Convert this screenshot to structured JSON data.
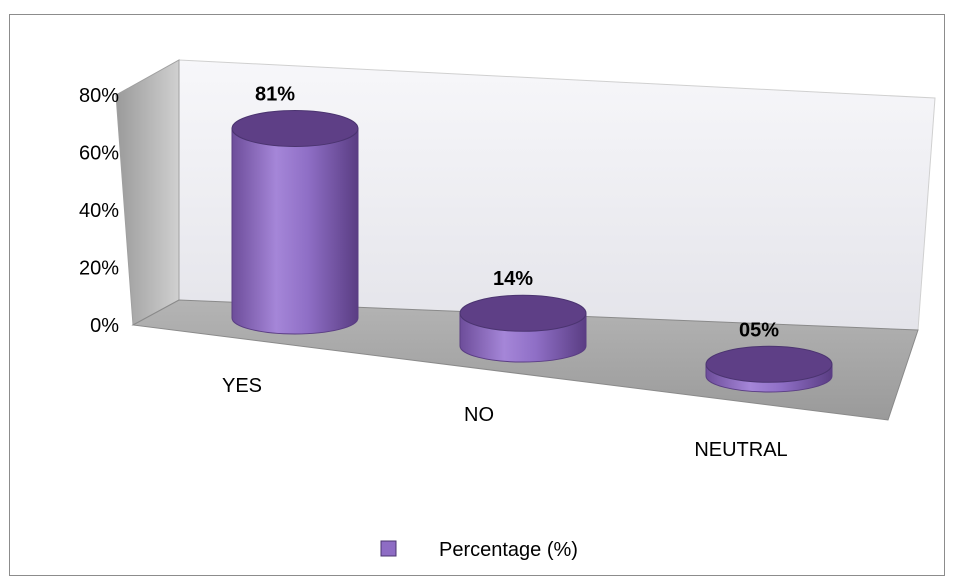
{
  "chart_data": {
    "type": "bar",
    "style": "3d-cylinder",
    "categories": [
      "YES",
      "NO",
      "NEUTRAL"
    ],
    "series": [
      {
        "name": "Percentage (%)",
        "values": [
          81,
          14,
          5
        ],
        "labels": [
          "81%",
          "14%",
          "05%"
        ]
      }
    ],
    "y_ticks": [
      "0%",
      "20%",
      "40%",
      "60%",
      "80%"
    ],
    "ylim": [
      0,
      80
    ],
    "grid": false,
    "legend": "bottom",
    "colors": {
      "bar": "#8e6cc4",
      "bar_top": "#5e3f86",
      "wall": "#f4f4f8",
      "side_wall": "#bdbdbd",
      "floor": "#a8a8a8"
    }
  }
}
